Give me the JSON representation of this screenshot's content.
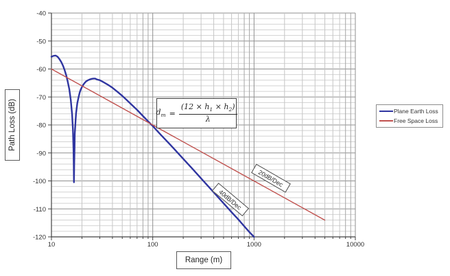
{
  "chart_data": {
    "type": "line",
    "title": "",
    "xlabel": "Range (m)",
    "ylabel": "Path Loss (dB)",
    "x_scale": "log",
    "xlim": [
      10,
      10000
    ],
    "ylim": [
      -120,
      -40
    ],
    "x_ticks": [
      "10",
      "100",
      "1000",
      "10000"
    ],
    "y_ticks": [
      "-40",
      "-50",
      "-60",
      "-70",
      "-80",
      "-90",
      "-100",
      "-110",
      "-120"
    ],
    "y_minor_step_db": 2,
    "grid": true,
    "legend_position": "right-outside",
    "series": [
      {
        "name": "Plane Earth Loss",
        "color": "#2F35A0",
        "width": 2.4,
        "points": [
          [
            10,
            -55.6
          ],
          [
            10.5,
            -55.3
          ],
          [
            11,
            -55.2
          ],
          [
            11.5,
            -55.6
          ],
          [
            12,
            -56.5
          ],
          [
            12.5,
            -57.5
          ],
          [
            13,
            -58.8
          ],
          [
            13.5,
            -60.4
          ],
          [
            14,
            -62.3
          ],
          [
            14.5,
            -64.6
          ],
          [
            15,
            -67.2
          ],
          [
            15.5,
            -70.9
          ],
          [
            16,
            -76.2
          ],
          [
            16.3,
            -81.6
          ],
          [
            16.5,
            -88.5
          ],
          [
            16.6,
            -94
          ],
          [
            16.67,
            -100.5
          ],
          [
            16.78,
            -94
          ],
          [
            16.9,
            -88.3
          ],
          [
            17,
            -83.2
          ],
          [
            17.3,
            -78.3
          ],
          [
            17.5,
            -75.8
          ],
          [
            18,
            -72.2
          ],
          [
            18.5,
            -70.1
          ],
          [
            19,
            -68.4
          ],
          [
            19.5,
            -67.3
          ],
          [
            20,
            -66.4
          ],
          [
            21,
            -65.2
          ],
          [
            22,
            -64.4
          ],
          [
            23,
            -64
          ],
          [
            24,
            -63.7
          ],
          [
            25,
            -63.5
          ],
          [
            26,
            -63.4
          ],
          [
            27,
            -63.4
          ],
          [
            28,
            -63.7
          ],
          [
            30,
            -64
          ],
          [
            33,
            -64.8
          ],
          [
            36,
            -65.6
          ],
          [
            40,
            -66.7
          ],
          [
            45,
            -68.2
          ],
          [
            50,
            -69.6
          ],
          [
            55,
            -71
          ],
          [
            60,
            -72.3
          ],
          [
            70,
            -74.6
          ],
          [
            80,
            -76.8
          ],
          [
            90,
            -78.7
          ],
          [
            100,
            -80.4
          ],
          [
            120,
            -83.5
          ],
          [
            150,
            -87.2
          ],
          [
            200,
            -92.1
          ],
          [
            250,
            -95.9
          ],
          [
            300,
            -99.1
          ],
          [
            400,
            -104.1
          ],
          [
            500,
            -108
          ],
          [
            600,
            -111.2
          ],
          [
            700,
            -113.8
          ],
          [
            800,
            -116.2
          ],
          [
            900,
            -118.3
          ],
          [
            1000,
            -120
          ]
        ]
      },
      {
        "name": "Free Space Loss",
        "color": "#C0504D",
        "width": 1.4,
        "points": [
          [
            10,
            -60
          ],
          [
            5000,
            -114
          ]
        ]
      }
    ],
    "annotations": {
      "formula": {
        "lhs": "d",
        "lhs_sub": "m",
        "equals": "=",
        "num_a": "(12 × h",
        "num_sub1": "1",
        "num_b": " × h",
        "num_sub2": "2",
        "num_c": ")",
        "denominator": "λ"
      },
      "slope_labels": [
        {
          "text": "20dB/Dec",
          "rotation_deg": 30,
          "attached_to": "Free Space Loss"
        },
        {
          "text": "40dB/Dec",
          "rotation_deg": 40,
          "attached_to": "Plane Earth Loss"
        }
      ]
    },
    "colors": {
      "axis": "#404040",
      "major_grid": "#8f8f8f",
      "minor_grid": "#c6c6c6",
      "tick_text": "#303030"
    }
  }
}
